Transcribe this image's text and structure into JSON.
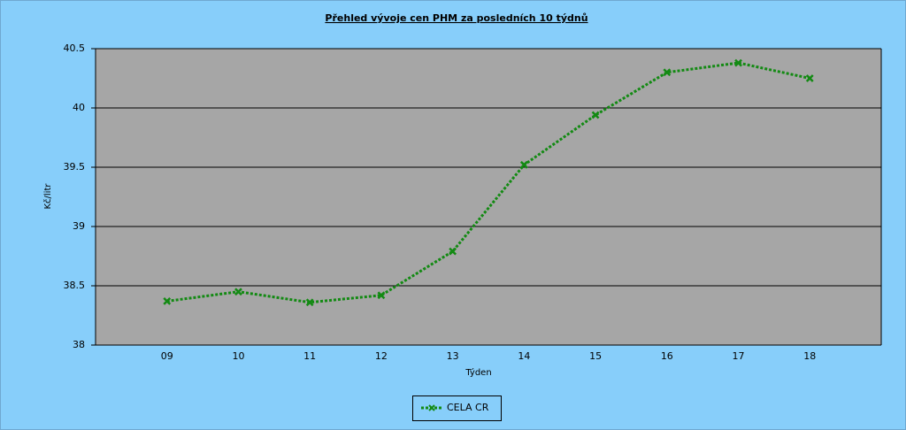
{
  "chart_data": {
    "type": "line",
    "title": "Přehled vývoje cen PHM za posledních 10 týdnů",
    "xlabel": "Týden",
    "ylabel": "Kč/litr",
    "categories": [
      "09",
      "10",
      "11",
      "12",
      "13",
      "14",
      "15",
      "16",
      "17",
      "18"
    ],
    "series": [
      {
        "name": "CELA CR",
        "color": "#138a13",
        "values": [
          38.37,
          38.45,
          38.36,
          38.42,
          38.79,
          39.52,
          39.94,
          40.3,
          40.38,
          40.25
        ]
      }
    ],
    "ylim": [
      38,
      40.5
    ],
    "yticks": [
      38,
      38.5,
      39,
      39.5,
      40,
      40.5
    ],
    "grid": true,
    "legend": "bottom"
  }
}
